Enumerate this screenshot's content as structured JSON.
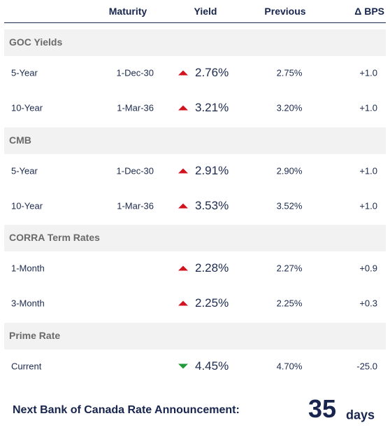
{
  "header": {
    "columns": [
      "Maturity",
      "Yield",
      "Previous",
      "Δ BPS"
    ]
  },
  "sections": [
    {
      "title": "GOC Yields",
      "rows": [
        {
          "term": "5-Year",
          "maturity": "1-Dec-30",
          "trend": "up",
          "yield": "2.76%",
          "previous": "2.75%",
          "change": "+1.0"
        },
        {
          "term": "10-Year",
          "maturity": "1-Mar-36",
          "trend": "up",
          "yield": "3.21%",
          "previous": "3.20%",
          "change": "+1.0"
        }
      ]
    },
    {
      "title": "CMB",
      "rows": [
        {
          "term": "5-Year",
          "maturity": "1-Dec-30",
          "trend": "up",
          "yield": "2.91%",
          "previous": "2.90%",
          "change": "+1.0"
        },
        {
          "term": "10-Year",
          "maturity": "1-Mar-36",
          "trend": "up",
          "yield": "3.53%",
          "previous": "3.52%",
          "change": "+1.0"
        }
      ]
    },
    {
      "title": "CORRA Term Rates",
      "rows": [
        {
          "term": "1-Month",
          "trend": "up",
          "yield": "2.28%",
          "previous": "2.27%",
          "change": "+0.9"
        },
        {
          "term": "3-Month",
          "trend": "up",
          "yield": "2.25%",
          "previous": "2.25%",
          "change": "+0.3"
        }
      ]
    },
    {
      "title": "Prime Rate",
      "rows": [
        {
          "term": "Current",
          "trend": "down",
          "yield": "4.45%",
          "previous": "4.70%",
          "change": "-25.0"
        }
      ]
    }
  ],
  "footer": {
    "label": "Next Bank of Canada Rate Announcement:",
    "count": "35",
    "unit": "days"
  }
}
